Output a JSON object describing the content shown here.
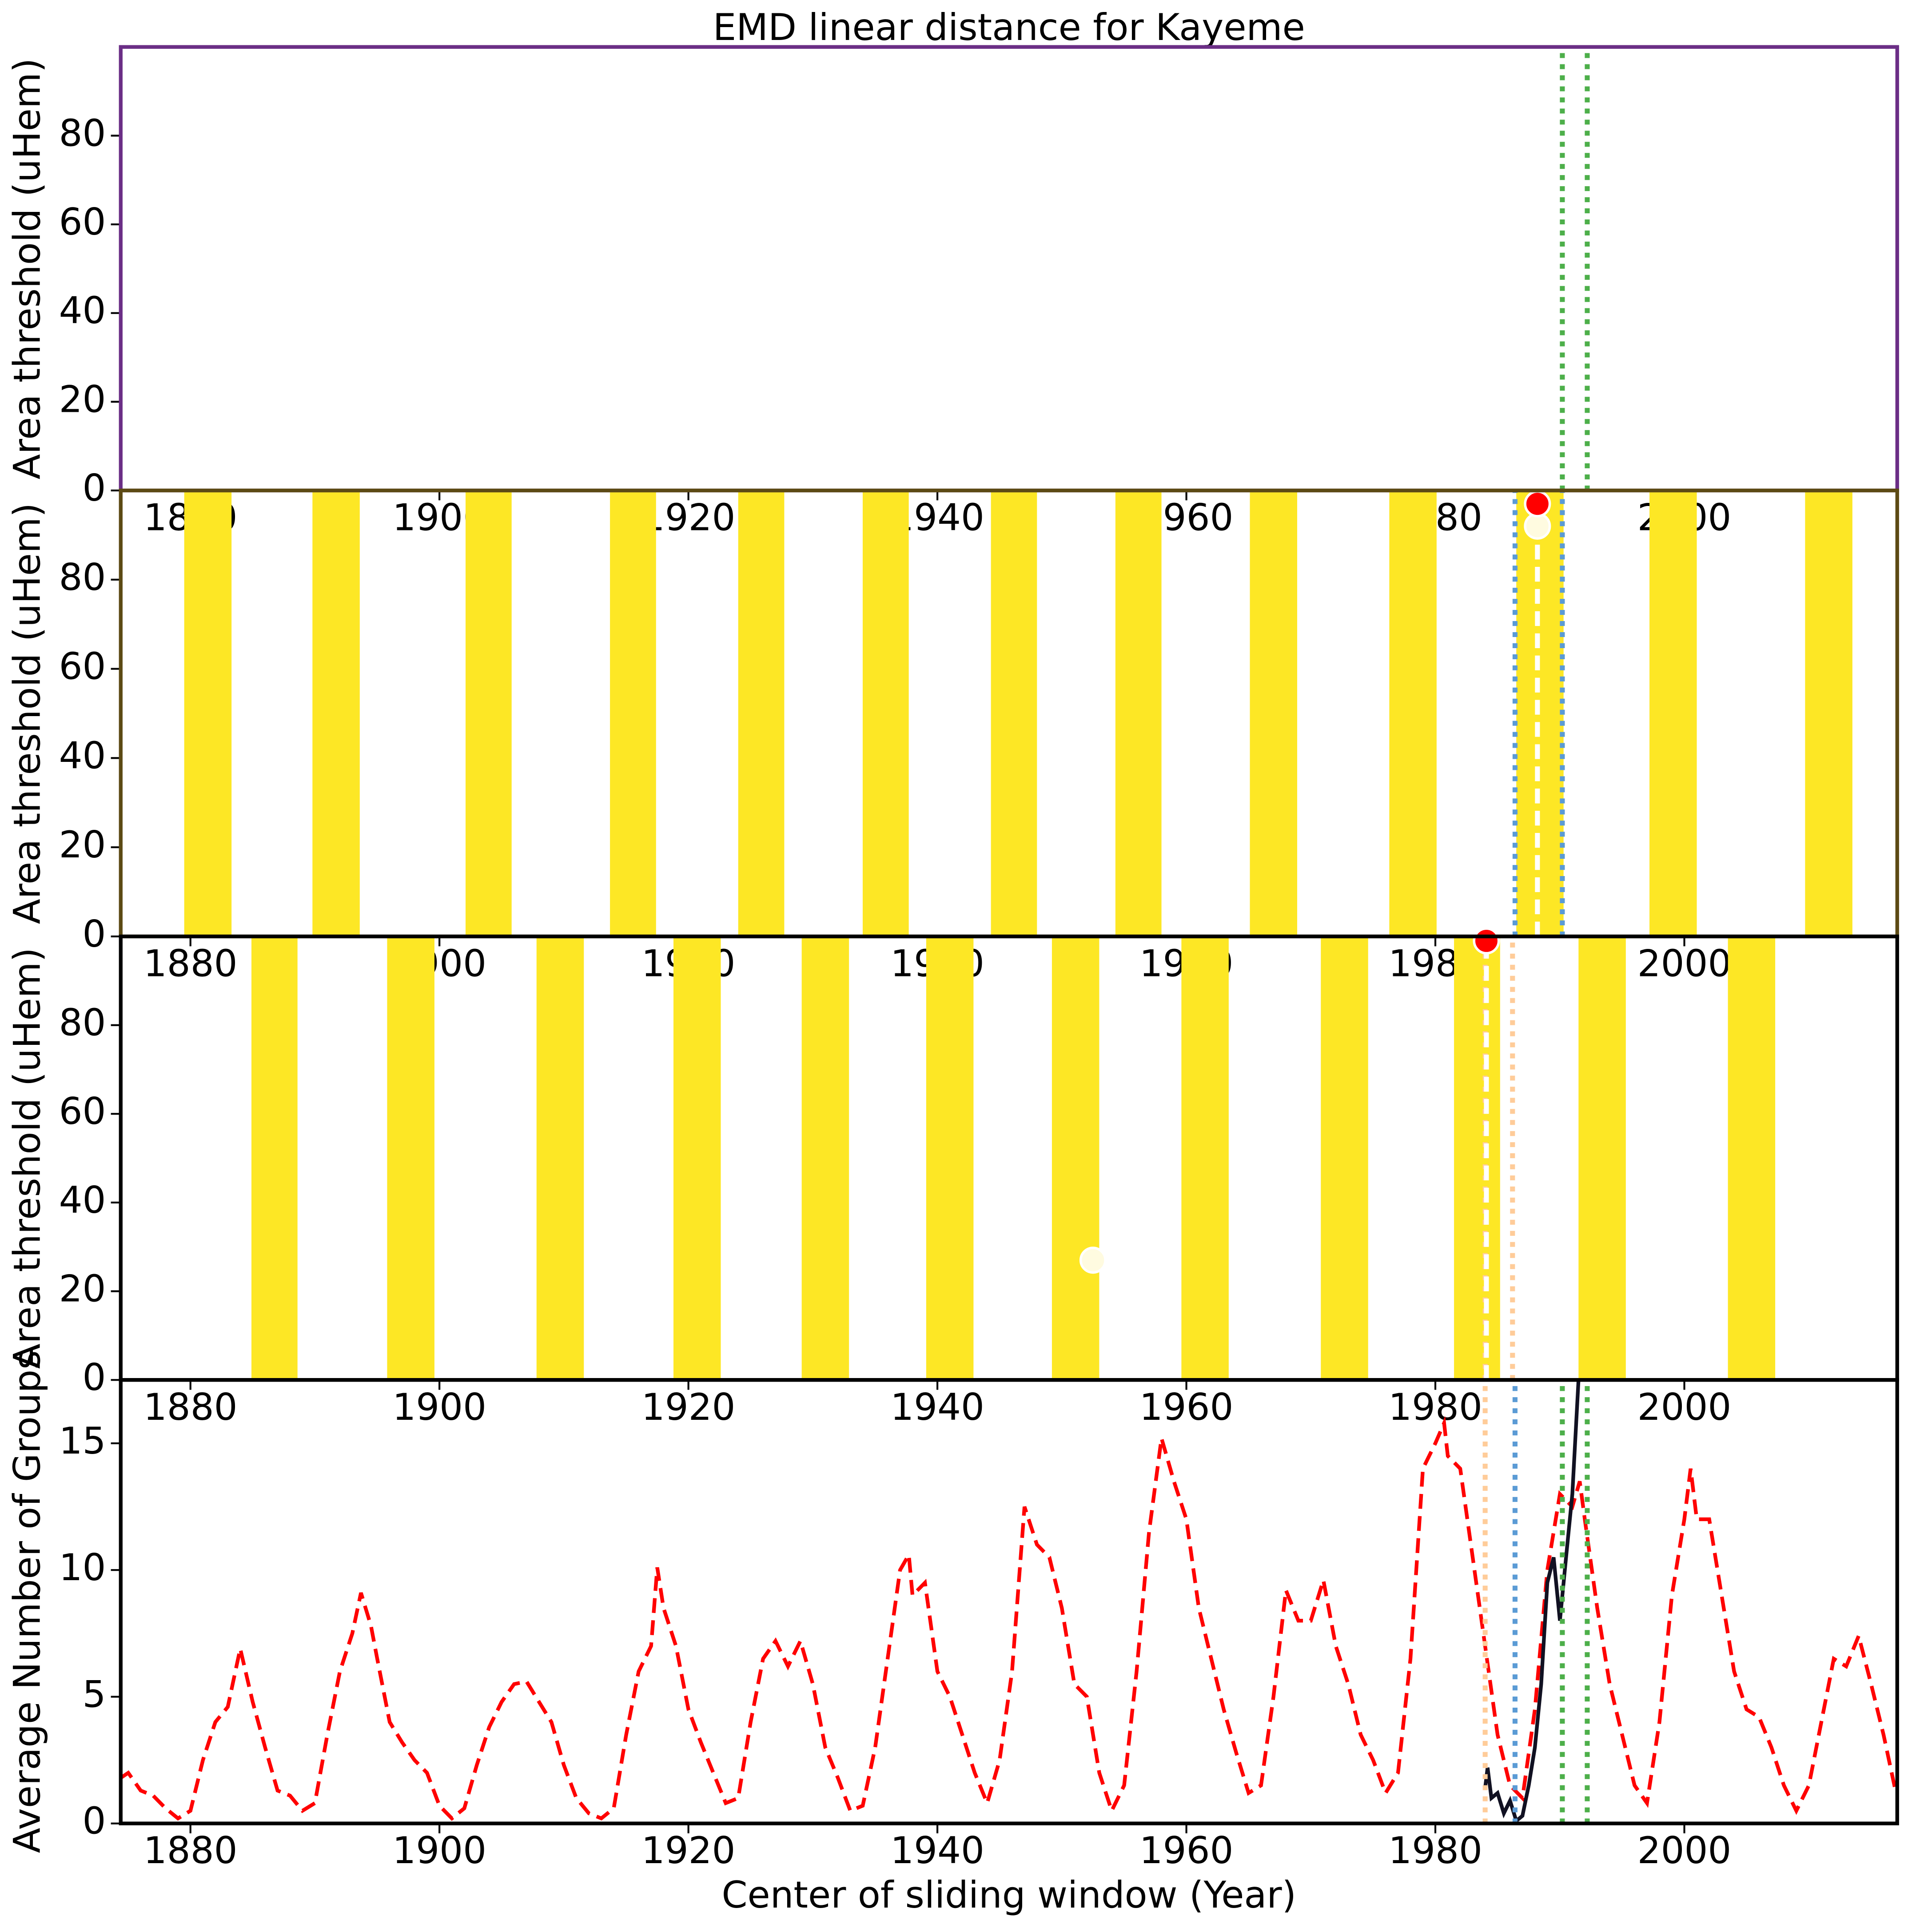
{
  "chart_data": [
    {
      "type": "line",
      "title": "EMD linear distance for Kayeme",
      "ylabel": "Area threshold (uHem)",
      "frame_color": "#6b2e86",
      "xlim": [
        1874.4,
        2017.1
      ],
      "xticks": [
        1880,
        1900,
        1920,
        1940,
        1960,
        1980,
        2000
      ],
      "ylim": [
        0,
        100
      ],
      "yticks": [
        0,
        20,
        40,
        60,
        80
      ],
      "vlines": [
        {
          "x": 1990.2,
          "color": "#4daf4a",
          "style": "dotted"
        },
        {
          "x": 1992.2,
          "color": "#4daf4a",
          "style": "dotted"
        }
      ]
    },
    {
      "type": "band",
      "ylabel": "Area threshold (uHem)",
      "frame_color": "#5c4a14",
      "color": "#fde725",
      "xlim": [
        1874.4,
        2017.1
      ],
      "xticks": [
        1880,
        1900,
        1920,
        1940,
        1960,
        1980,
        2000
      ],
      "ylim": [
        0,
        100
      ],
      "yticks": [
        0,
        20,
        40,
        60,
        80
      ],
      "bands": [
        [
          1879.5,
          1883.3
        ],
        [
          1889.8,
          1893.6
        ],
        [
          1902.1,
          1905.8
        ],
        [
          1913.7,
          1917.4
        ],
        [
          1924.0,
          1927.7
        ],
        [
          1934.0,
          1937.7
        ],
        [
          1944.3,
          1948.0
        ],
        [
          1954.3,
          1958.0
        ],
        [
          1965.1,
          1968.9
        ],
        [
          1976.3,
          1980.1
        ],
        [
          1986.5,
          1990.3
        ],
        [
          1997.2,
          2001.0
        ],
        [
          2009.7,
          2013.5
        ]
      ],
      "vlines": [
        {
          "x": 1986.4,
          "color": "#5b9bd5",
          "style": "dotted"
        },
        {
          "x": 1990.2,
          "color": "#5b9bd5",
          "style": "dotted"
        },
        {
          "x": 1988.2,
          "color": "#ffffff",
          "style": "dashed",
          "y_end": 92
        }
      ],
      "points": [
        {
          "x": 1988.2,
          "y": 92,
          "color": "#fffbe0"
        },
        {
          "x": 1988.2,
          "y": 97,
          "color": "#ff0000"
        }
      ]
    },
    {
      "type": "band",
      "ylabel": "Area threshold (uHem)",
      "frame_color": "#000000",
      "color": "#fde725",
      "xlim": [
        1874.4,
        2017.1
      ],
      "xticks": [
        1880,
        1900,
        1920,
        1940,
        1960,
        1980,
        2000
      ],
      "ylim": [
        0,
        100
      ],
      "yticks": [
        0,
        20,
        40,
        60,
        80
      ],
      "bands": [
        [
          1884.9,
          1888.6
        ],
        [
          1895.8,
          1899.6
        ],
        [
          1907.8,
          1911.6
        ],
        [
          1918.8,
          1922.6
        ],
        [
          1929.1,
          1932.9
        ],
        [
          1939.1,
          1942.9
        ],
        [
          1949.2,
          1953.0
        ],
        [
          1959.6,
          1963.4
        ],
        [
          1970.8,
          1974.6
        ],
        [
          1981.5,
          1985.2
        ],
        [
          1991.5,
          1995.3
        ],
        [
          2003.5,
          2007.3
        ]
      ],
      "vlines": [
        {
          "x": 1984.0,
          "color": "#ffcc99",
          "style": "dotted"
        },
        {
          "x": 1986.2,
          "color": "#ffcc99",
          "style": "dotted"
        },
        {
          "x": 1984.1,
          "color": "#ffffff",
          "style": "dashed",
          "y_end": 97
        }
      ],
      "points": [
        {
          "x": 1952.5,
          "y": 27,
          "color": "#fffbe0"
        },
        {
          "x": 1984.1,
          "y": 99,
          "color": "#ff0000"
        }
      ]
    },
    {
      "type": "line",
      "ylabel": "Average Number of Groups",
      "xlabel": "Center of sliding window (Year)",
      "frame_color": "#000000",
      "xlim": [
        1874.4,
        2017.1
      ],
      "xticks": [
        1880,
        1900,
        1920,
        1940,
        1960,
        1980,
        2000
      ],
      "ylim": [
        0,
        17.5
      ],
      "yticks": [
        0,
        5,
        10,
        15
      ],
      "vlines": [
        {
          "x": 1984.0,
          "color": "#ffcc99",
          "style": "dotted"
        },
        {
          "x": 1986.4,
          "color": "#5b9bd5",
          "style": "dotted"
        },
        {
          "x": 1990.2,
          "color": "#4daf4a",
          "style": "dotted"
        },
        {
          "x": 1992.2,
          "color": "#4daf4a",
          "style": "dotted"
        }
      ],
      "series": [
        {
          "color": "#ff0000",
          "style": "dashed",
          "x": [
            1874.4,
            1875,
            1876,
            1877,
            1878,
            1879,
            1880,
            1881,
            1882,
            1883,
            1884,
            1885,
            1886,
            1887,
            1888,
            1889,
            1890,
            1891,
            1892,
            1893,
            1893.7,
            1894.5,
            1895,
            1896,
            1897,
            1898,
            1899,
            1900,
            1901,
            1902,
            1903,
            1904,
            1905,
            1906,
            1907,
            1908,
            1909,
            1910,
            1911,
            1912,
            1913,
            1914,
            1915,
            1916,
            1917,
            1917.5,
            1918,
            1919,
            1920,
            1921,
            1922,
            1923,
            1924,
            1925,
            1926,
            1927,
            1928,
            1929,
            1930,
            1931,
            1932,
            1933,
            1934,
            1935,
            1936,
            1937,
            1937.7,
            1938,
            1939,
            1940,
            1941,
            1942,
            1943,
            1944,
            1945,
            1946,
            1947,
            1948,
            1949,
            1950,
            1951,
            1952,
            1953,
            1954,
            1955,
            1956,
            1957,
            1958,
            1959,
            1960,
            1961,
            1962,
            1963,
            1964,
            1965,
            1966,
            1967,
            1968,
            1969,
            1970,
            1971,
            1972,
            1973,
            1974,
            1975,
            1976,
            1977,
            1978,
            1979,
            1980,
            1980.7,
            1981,
            1982,
            1983,
            1984,
            1985,
            1986,
            1987,
            1988,
            1989,
            1990,
            1991,
            1991.6,
            1992,
            1993,
            1994,
            1995,
            1996,
            1997,
            1998,
            1999,
            2000,
            2000.5,
            2001,
            2002,
            2003,
            2004,
            2005,
            2006,
            2007,
            2008,
            2009,
            2010,
            2011,
            2012,
            2013,
            2014,
            2015,
            2016,
            2017
          ],
          "values": [
            1.8,
            2.0,
            1.3,
            1.1,
            0.6,
            0.2,
            0.5,
            2.5,
            4.0,
            4.6,
            6.9,
            4.8,
            3.0,
            1.3,
            1.1,
            0.5,
            0.8,
            3.5,
            6.0,
            7.5,
            9.1,
            7.8,
            6.5,
            4.0,
            3.2,
            2.5,
            2.0,
            0.7,
            0.2,
            0.6,
            2.3,
            3.8,
            4.8,
            5.5,
            5.6,
            4.8,
            4.0,
            2.3,
            1.0,
            0.4,
            0.2,
            0.6,
            3.5,
            6.0,
            7.0,
            10.1,
            8.5,
            7.0,
            4.5,
            3.2,
            2.0,
            0.8,
            1.0,
            4.0,
            6.5,
            7.2,
            6.2,
            7.2,
            5.5,
            3.0,
            1.8,
            0.5,
            0.7,
            3.0,
            6.5,
            10.0,
            10.6,
            9.0,
            9.5,
            6.0,
            5.0,
            3.5,
            2.0,
            0.8,
            2.5,
            6.0,
            12.5,
            11.0,
            10.5,
            8.5,
            5.5,
            5.0,
            2.0,
            0.5,
            1.5,
            6.0,
            11.5,
            15.2,
            13.5,
            12.0,
            8.5,
            6.5,
            4.5,
            2.8,
            1.2,
            1.5,
            5.0,
            9.2,
            8.0,
            8.0,
            9.6,
            7.0,
            5.5,
            3.5,
            2.5,
            1.2,
            2.0,
            6.5,
            14.0,
            15.0,
            15.8,
            14.5,
            14.0,
            10.5,
            7.0,
            3.5,
            1.5,
            1.0,
            4.5,
            10.0,
            13.0,
            12.5,
            13.5,
            12.0,
            8.5,
            5.5,
            3.5,
            1.5,
            0.8,
            4.0,
            9.0,
            12.0,
            14.0,
            12.0,
            12.0,
            9.0,
            6.0,
            4.5,
            4.2,
            3.0,
            1.5,
            0.5,
            1.5,
            4.0,
            6.5,
            6.2,
            7.4,
            5.5,
            3.5,
            1.2
          ]
        },
        {
          "color": "#111122",
          "style": "solid",
          "x": [
            1984,
            1984.2,
            1984.5,
            1985,
            1985.5,
            1986,
            1986.5,
            1987,
            1987.5,
            1988,
            1988.5,
            1989,
            1989.5,
            1990,
            1990.5,
            1991,
            1991.5,
            1991.8
          ],
          "values": [
            1.4,
            2.2,
            1.0,
            1.2,
            0.4,
            0.9,
            0.1,
            0.3,
            1.5,
            3.0,
            5.5,
            9.5,
            10.5,
            8.0,
            10.5,
            13.0,
            17.5,
            19
          ]
        }
      ]
    }
  ]
}
